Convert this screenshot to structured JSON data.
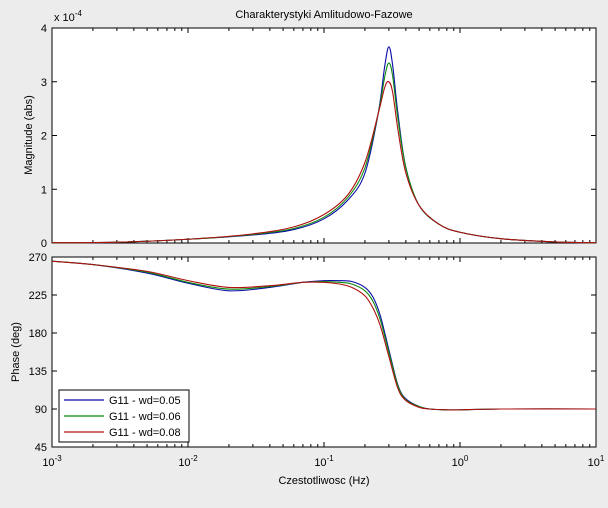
{
  "chart_data": [
    {
      "type": "line",
      "title": "Charakterystyki Amlitudowo-Fazowe",
      "xlabel": "",
      "ylabel": "Magnitude (abs)",
      "xscale": "log",
      "xlim": [
        0.001,
        10
      ],
      "ylim": [
        0,
        0.0004
      ],
      "exponent_label": "x 10",
      "exponent_power": "-4",
      "yticks": [
        0,
        1,
        2,
        3,
        4
      ],
      "ytick_labels": [
        "0",
        "1",
        "2",
        "3",
        "4"
      ],
      "x": [
        0.001,
        0.003,
        0.01,
        0.03,
        0.06,
        0.1,
        0.15,
        0.2,
        0.25,
        0.28,
        0.3,
        0.32,
        0.35,
        0.4,
        0.5,
        0.7,
        1,
        2,
        5,
        10
      ],
      "series": [
        {
          "name": "G11 - wd=0.05",
          "color": "#0A0AAA",
          "values": [
            5e-07,
            1.5e-06,
            7e-06,
            1.5e-05,
            2.5e-05,
            4.5e-05,
            8e-05,
            0.00013,
            0.00024,
            0.00033,
            0.000365,
            0.00033,
            0.00024,
            0.00014,
            7e-05,
            3.5e-05,
            2e-05,
            8e-06,
            2e-06,
            5e-07
          ]
        },
        {
          "name": "G11 - wd=0.06",
          "color": "#0C8A0C",
          "values": [
            5e-07,
            1.5e-06,
            7e-06,
            1.6e-05,
            2.7e-05,
            4.8e-05,
            8.5e-05,
            0.00014,
            0.00024,
            0.00031,
            0.000335,
            0.00031,
            0.00023,
            0.00014,
            7e-05,
            3.5e-05,
            2e-05,
            8e-06,
            2e-06,
            5e-07
          ]
        },
        {
          "name": "G11 - wd=0.08",
          "color": "#B01010",
          "values": [
            5e-07,
            1.5e-06,
            7e-06,
            1.7e-05,
            3e-05,
            5.3e-05,
            9e-05,
            0.00015,
            0.00024,
            0.00029,
            0.0003,
            0.00028,
            0.00021,
            0.00013,
            7e-05,
            3.5e-05,
            2e-05,
            8e-06,
            2e-06,
            5e-07
          ]
        }
      ]
    },
    {
      "type": "line",
      "title": "",
      "xlabel": "Czestotliwosc  (Hz)",
      "ylabel": "Phase (deg)",
      "xscale": "log",
      "xlim": [
        0.001,
        10
      ],
      "ylim": [
        45,
        270
      ],
      "yticks": [
        45,
        90,
        135,
        180,
        225,
        270
      ],
      "ytick_labels": [
        "45",
        "90",
        "135",
        "180",
        "225",
        "270"
      ],
      "xtick_base": "10",
      "xtick_powers": [
        "-3",
        "-2",
        "-1",
        "0",
        "1"
      ],
      "x": [
        0.001,
        0.002,
        0.005,
        0.01,
        0.02,
        0.04,
        0.07,
        0.1,
        0.13,
        0.16,
        0.2,
        0.23,
        0.26,
        0.3,
        0.35,
        0.4,
        0.5,
        0.6,
        0.8,
        1,
        2,
        10
      ],
      "series": [
        {
          "name": "G11 - wd=0.05",
          "color": "#0A0AAA",
          "values": [
            265,
            261,
            251,
            239,
            230,
            234,
            240,
            242,
            242,
            241,
            234,
            222,
            200,
            160,
            118,
            102,
            93,
            90,
            89,
            89,
            90,
            90
          ]
        },
        {
          "name": "G11 - wd=0.06",
          "color": "#0C8A0C",
          "values": [
            265,
            261,
            252,
            240,
            232,
            235,
            240,
            241,
            240,
            238,
            230,
            217,
            195,
            157,
            117,
            101,
            93,
            90,
            89,
            89,
            90,
            90
          ]
        },
        {
          "name": "G11 - wd=0.08",
          "color": "#B01010",
          "values": [
            265,
            261,
            253,
            242,
            234,
            236,
            240,
            240,
            238,
            234,
            224,
            209,
            188,
            152,
            114,
            100,
            92,
            90,
            89,
            89,
            90,
            90
          ]
        }
      ]
    }
  ],
  "legend": {
    "position": "bottom-left",
    "entries": [
      {
        "label": "G11 - wd=0.05",
        "color": "#0A0AAA"
      },
      {
        "label": "G11 - wd=0.06",
        "color": "#0C8A0C"
      },
      {
        "label": "G11 - wd=0.08",
        "color": "#B01010"
      }
    ]
  }
}
